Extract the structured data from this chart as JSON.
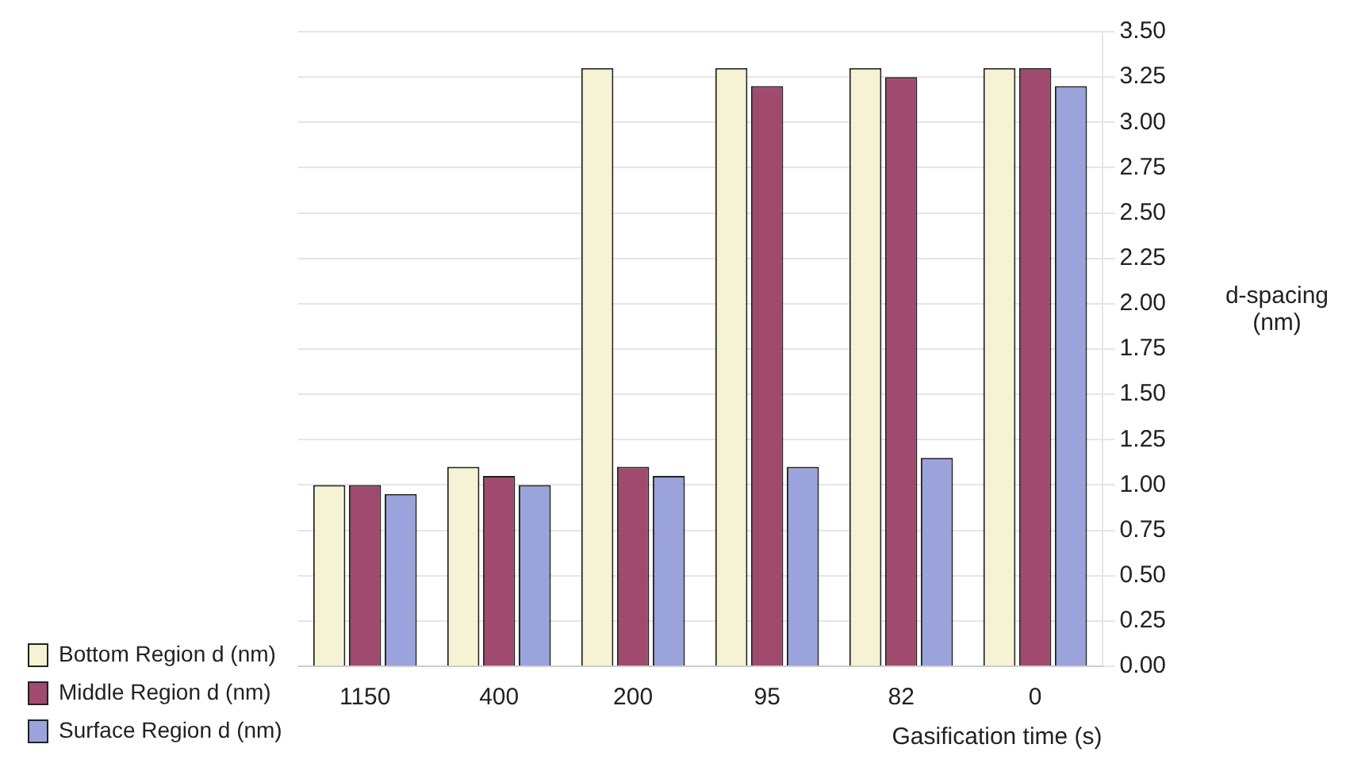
{
  "chart_data": {
    "type": "bar",
    "xlabel": "Gasification time (s)",
    "ylabel": "d-spacing (nm)",
    "categories": [
      "1150",
      "400",
      "200",
      "95",
      "82",
      "0"
    ],
    "series": [
      {
        "name": "Bottom Region d (nm)",
        "color": "#f5f3d3",
        "values": [
          1.0,
          1.1,
          3.3,
          3.3,
          3.3,
          3.3
        ]
      },
      {
        "name": "Middle Region d (nm)",
        "color": "#a04a6e",
        "values": [
          1.0,
          1.05,
          1.1,
          3.2,
          3.25,
          3.3
        ]
      },
      {
        "name": "Surface Region d (nm)",
        "color": "#9aa3dc",
        "values": [
          0.95,
          1.0,
          1.05,
          1.1,
          1.15,
          3.2
        ]
      }
    ],
    "ylim": [
      0,
      3.5
    ],
    "yticks": [
      {
        "value": 0,
        "label": "0.00"
      },
      {
        "value": 0.25,
        "label": "0.25"
      },
      {
        "value": 0.5,
        "label": "0.50"
      },
      {
        "value": 0.75,
        "label": "0.75"
      },
      {
        "value": 1,
        "label": "1.00"
      },
      {
        "value": 1.25,
        "label": "1.25"
      },
      {
        "value": 1.5,
        "label": "1.50"
      },
      {
        "value": 1.75,
        "label": "1.75"
      },
      {
        "value": 2,
        "label": "2.00"
      },
      {
        "value": 2.25,
        "label": "2.25"
      },
      {
        "value": 2.5,
        "label": "2.50"
      },
      {
        "value": 2.75,
        "label": "2.75"
      },
      {
        "value": 3,
        "label": "3.00"
      },
      {
        "value": 3.25,
        "label": "3.25"
      },
      {
        "value": 3.5,
        "label": "3.50"
      }
    ],
    "grid": "y",
    "legend": "bottom left"
  }
}
